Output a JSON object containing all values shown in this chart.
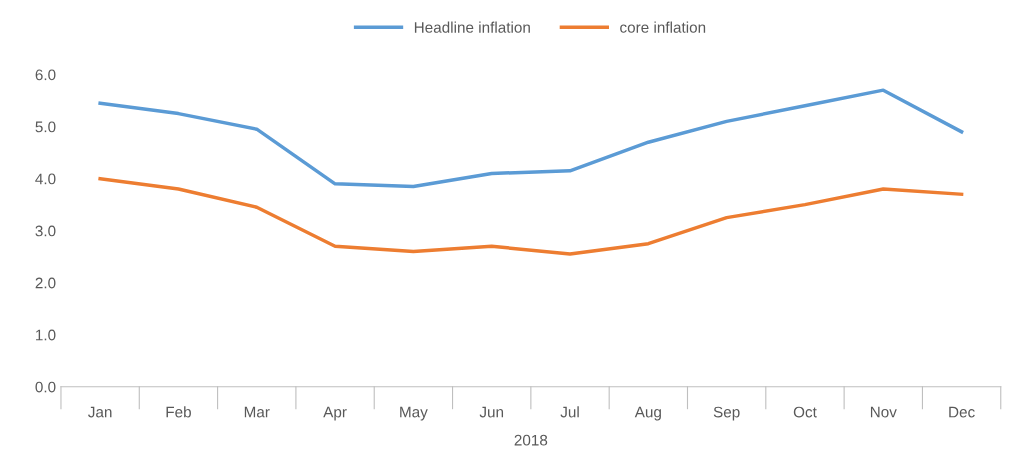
{
  "chart_data": {
    "type": "line",
    "categories": [
      "Jan",
      "Feb",
      "Mar",
      "Apr",
      "May",
      "Jun",
      "Jul",
      "Aug",
      "Sep",
      "Oct",
      "Nov",
      "Dec"
    ],
    "xlabel": "2018",
    "series": [
      {
        "name": "Headline inflation",
        "color": "#5b9bd5",
        "values": [
          5.45,
          5.25,
          4.95,
          3.9,
          3.85,
          4.1,
          4.15,
          4.7,
          5.1,
          5.4,
          5.7,
          4.9
        ]
      },
      {
        "name": "core inflation",
        "color": "#ed7d31",
        "values": [
          4.0,
          3.8,
          3.45,
          2.7,
          2.6,
          2.7,
          2.55,
          2.75,
          3.25,
          3.5,
          3.8,
          3.7
        ]
      }
    ],
    "ylim": [
      0,
      6
    ],
    "yticks": [
      {
        "value": 0,
        "label": "0.0"
      },
      {
        "value": 1,
        "label": "1.0"
      },
      {
        "value": 2,
        "label": "2.0"
      },
      {
        "value": 3,
        "label": "3.0"
      },
      {
        "value": 4,
        "label": "4.0"
      },
      {
        "value": 5,
        "label": "5.0"
      },
      {
        "value": 6,
        "label": "6.0"
      }
    ],
    "grid": false,
    "legend": "top",
    "marker": "none",
    "line_style": "solid"
  }
}
